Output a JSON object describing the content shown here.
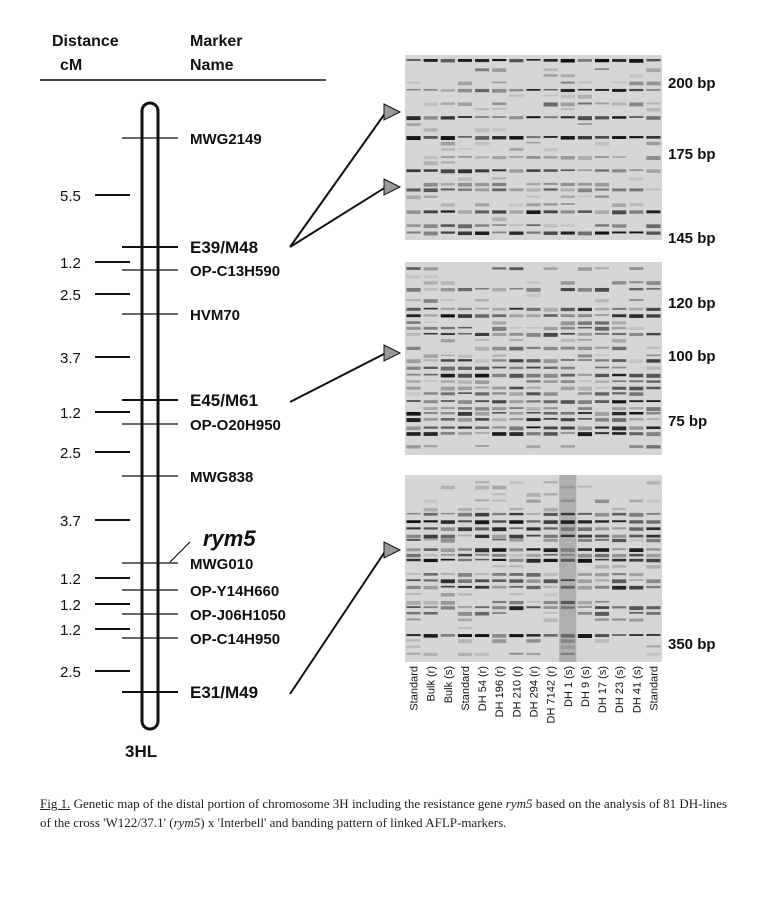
{
  "header": {
    "distance": [
      "Distance",
      "cM"
    ],
    "marker": [
      "Marker",
      "Name"
    ]
  },
  "chromosome": "3HL",
  "gene": "rym5",
  "markers": [
    "MWG2149",
    "E39/M48",
    "OP-C13H590",
    "HVM70",
    "E45/M61",
    "OP-O20H950",
    "MWG838",
    "MWG010",
    "OP-Y14H660",
    "OP-J06H1050",
    "OP-C14H950",
    "E31/M49"
  ],
  "distances": [
    "5.5",
    "1.2",
    "2.5",
    "3.7",
    "1.2",
    "2.5",
    "3.7",
    "1.2",
    "1.2",
    "1.2",
    "2.5"
  ],
  "sizes": [
    "200 bp",
    "175 bp",
    "145 bp",
    "120 bp",
    "100 bp",
    "75 bp",
    "350 bp"
  ],
  "lanes": [
    "Standard",
    "Bulk (r)",
    "Bulk (s)",
    "Standard",
    "DH 54 (r)",
    "DH 196 (r)",
    "DH 210 (r)",
    "DH 294 (r)",
    "DH 7142 (r)",
    "DH 1 (s)",
    "DH 9 (s)",
    "DH 17 (s)",
    "DH 23 (s)",
    "DH 41 (s)",
    "Standard"
  ],
  "caption": {
    "label": "Fig 1.",
    "parts": [
      " Genetic map of the distal portion of chromosome 3H including the resistance gene ",
      "rym5",
      " based on the analysis of 81 DH-lines of the cross 'W122/37.1' (",
      "rym5",
      ") x 'Interbell' and banding pattern of linked AFLP-markers."
    ]
  }
}
